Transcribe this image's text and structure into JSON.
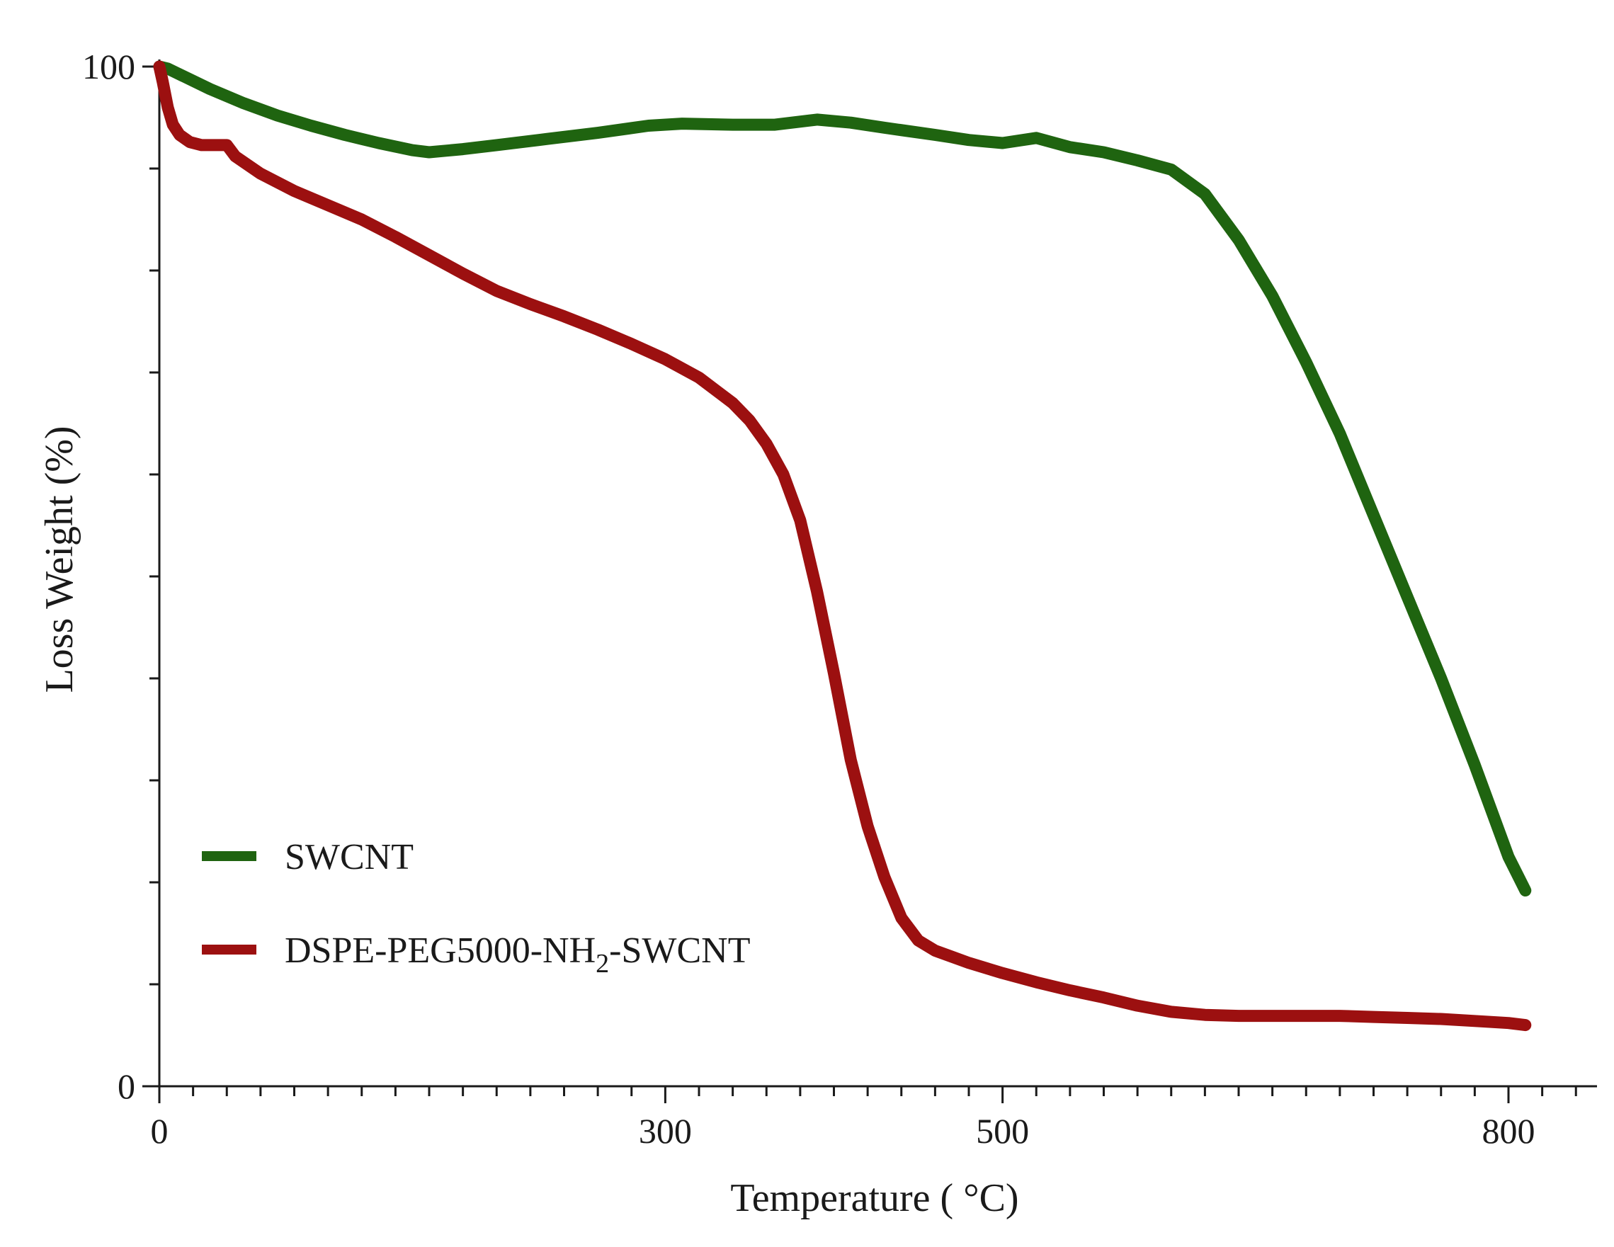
{
  "chart_data": {
    "type": "line",
    "title": "",
    "xlabel": "Temperature ( °C)",
    "ylabel": "Loss Weight (%)",
    "xlim": [
      0,
      860
    ],
    "ylim": [
      0,
      100
    ],
    "x_tick_labels": [
      "0",
      "300",
      "500",
      "800"
    ],
    "x_tick_values": [
      0,
      300,
      500,
      800
    ],
    "y_tick_labels": [
      "0",
      "100"
    ],
    "y_tick_values": [
      0,
      100
    ],
    "legend_position": "bottom-left",
    "series": [
      {
        "name": "SWCNT",
        "color": "#1f6410",
        "x": [
          0,
          5,
          15,
          30,
          50,
          70,
          90,
          110,
          130,
          150,
          160,
          180,
          200,
          230,
          260,
          290,
          310,
          340,
          365,
          390,
          410,
          430,
          460,
          480,
          500,
          520,
          540,
          560,
          580,
          600,
          620,
          640,
          660,
          680,
          700,
          720,
          740,
          760,
          780,
          800,
          810
        ],
        "y": [
          100,
          99.8,
          99.0,
          97.8,
          96.4,
          95.2,
          94.2,
          93.3,
          92.5,
          91.8,
          91.6,
          91.9,
          92.3,
          92.9,
          93.5,
          94.2,
          94.4,
          94.3,
          94.3,
          94.8,
          94.5,
          94.0,
          93.3,
          92.8,
          92.5,
          93.0,
          92.1,
          91.6,
          90.8,
          89.9,
          87.5,
          83.0,
          77.5,
          71.0,
          64.0,
          56.0,
          48.0,
          40.0,
          31.5,
          22.5,
          19.2
        ]
      },
      {
        "name": "DSPE-PEG5000-NH2-SWCNT",
        "color": "#9c1010",
        "x": [
          0,
          2,
          5,
          8,
          12,
          18,
          25,
          30,
          35,
          40,
          45,
          60,
          80,
          100,
          120,
          140,
          160,
          180,
          200,
          220,
          240,
          260,
          280,
          300,
          320,
          340,
          350,
          360,
          370,
          380,
          390,
          400,
          410,
          420,
          430,
          440,
          450,
          460,
          470,
          480,
          500,
          520,
          540,
          560,
          580,
          600,
          620,
          640,
          660,
          680,
          700,
          720,
          740,
          760,
          780,
          800,
          810
        ],
        "y": [
          100,
          98.5,
          96.0,
          94.3,
          93.3,
          92.6,
          92.3,
          92.3,
          92.3,
          92.3,
          91.2,
          89.5,
          87.8,
          86.4,
          85.0,
          83.3,
          81.5,
          79.7,
          78.0,
          76.7,
          75.5,
          74.2,
          72.8,
          71.3,
          69.5,
          67.0,
          65.3,
          63.0,
          60.0,
          55.5,
          48.5,
          40.5,
          32.0,
          25.5,
          20.5,
          16.5,
          14.3,
          13.3,
          12.7,
          12.1,
          11.1,
          10.2,
          9.4,
          8.7,
          7.9,
          7.3,
          7.0,
          6.9,
          6.9,
          6.9,
          6.9,
          6.8,
          6.7,
          6.6,
          6.4,
          6.2,
          6.0
        ]
      }
    ]
  }
}
